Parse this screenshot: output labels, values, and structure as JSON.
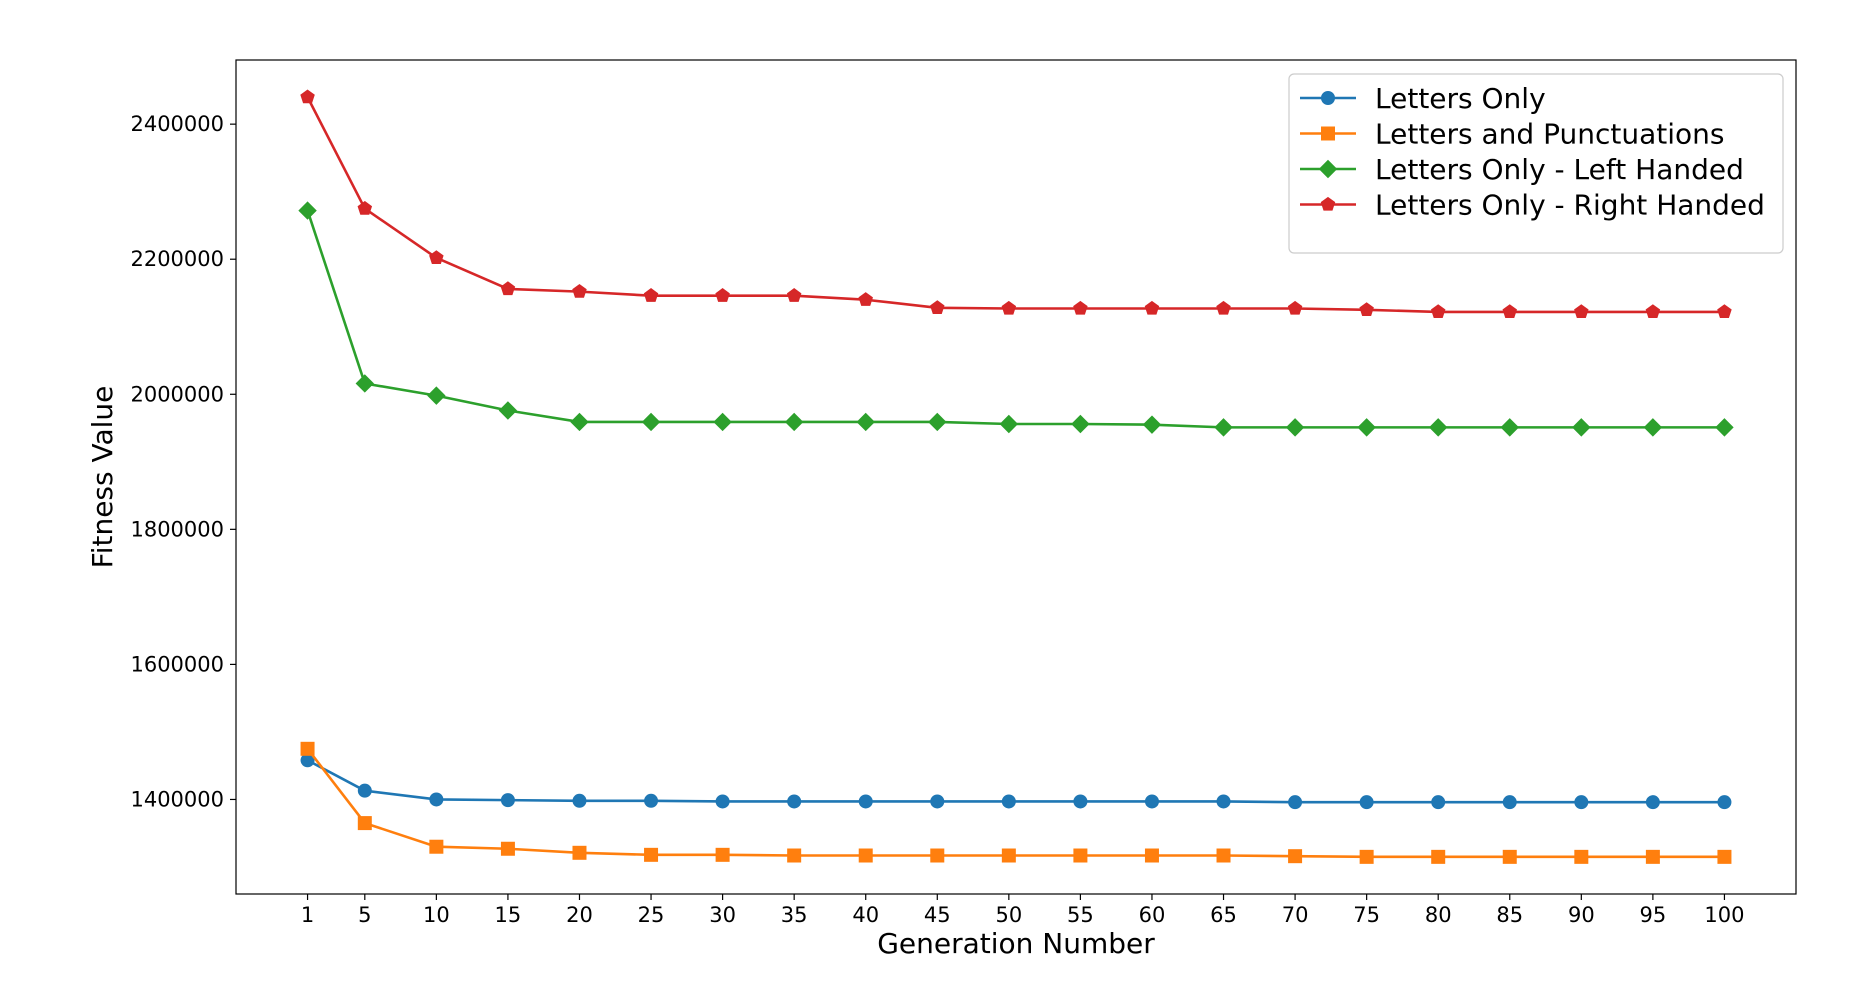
{
  "chart_data": {
    "type": "line",
    "title": "",
    "xlabel": "Generation Number",
    "ylabel": "Fitness Value",
    "x": [
      1,
      5,
      10,
      15,
      20,
      25,
      30,
      35,
      40,
      45,
      50,
      55,
      60,
      65,
      70,
      75,
      80,
      85,
      90,
      95,
      100
    ],
    "x_tick_labels": [
      "1",
      "5",
      "10",
      "15",
      "20",
      "25",
      "30",
      "35",
      "40",
      "45",
      "50",
      "55",
      "60",
      "65",
      "70",
      "75",
      "80",
      "85",
      "90",
      "95",
      "100"
    ],
    "xlim": [
      -4,
      105
    ],
    "ylim": [
      1260000,
      2495000
    ],
    "y_ticks": [
      1400000,
      1600000,
      1800000,
      2000000,
      2200000,
      2400000
    ],
    "y_tick_labels": [
      "1400000",
      "1600000",
      "1800000",
      "2000000",
      "2200000",
      "2400000"
    ],
    "grid": false,
    "legend_position": "top-right",
    "series": [
      {
        "name": "Letters Only",
        "color": "#1f77b4",
        "marker": "circle",
        "values": [
          1458000,
          1413000,
          1400000,
          1399000,
          1398000,
          1398000,
          1397000,
          1397000,
          1397000,
          1397000,
          1397000,
          1397000,
          1397000,
          1397000,
          1396000,
          1396000,
          1396000,
          1396000,
          1396000,
          1396000,
          1396000
        ]
      },
      {
        "name": "Letters and Punctuations",
        "color": "#ff7f0e",
        "marker": "square",
        "values": [
          1475000,
          1365000,
          1330000,
          1327000,
          1321000,
          1318000,
          1318000,
          1317000,
          1317000,
          1317000,
          1317000,
          1317000,
          1317000,
          1317000,
          1316000,
          1315000,
          1315000,
          1315000,
          1315000,
          1315000,
          1315000
        ]
      },
      {
        "name": "Letters Only - Left Handed",
        "color": "#2ca02c",
        "marker": "diamond",
        "values": [
          2272000,
          2016000,
          1998000,
          1976000,
          1959000,
          1959000,
          1959000,
          1959000,
          1959000,
          1959000,
          1956000,
          1956000,
          1955000,
          1951000,
          1951000,
          1951000,
          1951000,
          1951000,
          1951000,
          1951000,
          1951000
        ]
      },
      {
        "name": "Letters Only - Right Handed",
        "color": "#d62728",
        "marker": "pentagon",
        "values": [
          2440000,
          2275000,
          2202000,
          2156000,
          2152000,
          2146000,
          2146000,
          2146000,
          2140000,
          2128000,
          2127000,
          2127000,
          2127000,
          2127000,
          2127000,
          2125000,
          2122000,
          2122000,
          2122000,
          2122000,
          2122000
        ]
      }
    ]
  }
}
